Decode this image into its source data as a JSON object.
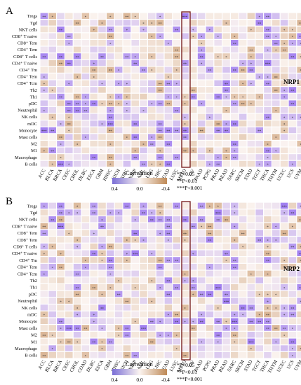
{
  "figure": {
    "panels": [
      "A",
      "B"
    ],
    "legend_title": "Correlation",
    "legend_ticks": [
      "0.4",
      "0.0",
      "-0.4"
    ],
    "legend_colors": {
      "positive": "#7b6fd6",
      "zero": "#fbf4f0",
      "negative": "#bf8a57"
    },
    "significance_notes": [
      "*P<0.05",
      "**P<0.01",
      "***P<0.001"
    ],
    "highlight_column": "PAAD",
    "highlight_color": "#7a2323"
  },
  "chart_data": [
    {
      "type": "heatmap",
      "panel": "A",
      "gene_label": "NRP1",
      "rows": [
        "Tregs",
        "Tgd",
        "NKT cells",
        "CD8⁺ T naive",
        "CD8⁺ Tem",
        "CD4⁺ Tem",
        "CD8⁺ T cells",
        "CD4⁺ T naive",
        "CD4⁺ Tm",
        "CD4⁺ Tem",
        "CD4⁺ Tcm",
        "Th2",
        "Th1",
        "pDC",
        "Neutrophil",
        "NK cells",
        "mDC",
        "Monocyte",
        "Mast cells",
        "M2",
        "M1",
        "Macrophage",
        "B cells"
      ],
      "columns": [
        "ACC",
        "BLCA",
        "BRCA",
        "CESC",
        "CHOL",
        "DLBC",
        "ESCA",
        "GBM",
        "HNSC",
        "KICH",
        "KIRC",
        "KIRP",
        "LAML",
        "LGG",
        "LIHC",
        "LUAD",
        "LUSC",
        "MESO",
        "OV",
        "PAAD",
        "PCPG",
        "PRAD",
        "READ",
        "SARC",
        "SKCM",
        "STAD",
        "TGCT",
        "THCA",
        "THYM",
        "UCEC",
        "UCS",
        "UVM"
      ],
      "values_note": "correlation coefficients, range -0.4 to 0.4"
    },
    {
      "type": "heatmap",
      "panel": "B",
      "gene_label": "NRP2",
      "rows": [
        "Tregs",
        "Tgd",
        "NKT cells",
        "CD8⁺ T naive",
        "CD8⁺ Tem",
        "CD8⁺ Tem",
        "CD8⁺ T cells",
        "CD4⁺ T naive",
        "CD4⁺ Tm",
        "CD4⁺ Tem",
        "CD4⁺ Tcm",
        "Th2",
        "Th1",
        "pDC",
        "Neutrophil",
        "NK cells",
        "mDC",
        "Monocyte",
        "Mast cells",
        "M2",
        "M1",
        "Macrophage",
        "B cells"
      ],
      "columns": [
        "ACC",
        "BLCA",
        "BRCA",
        "CESC",
        "CHOL",
        "COAD",
        "DLBC",
        "ESCA",
        "GBM",
        "HNSC",
        "KICH",
        "KIRP",
        "LAML",
        "LGG",
        "LIHC",
        "LUAD",
        "LUSC",
        "MESO",
        "OV",
        "PAAD",
        "PCPG",
        "PRAD",
        "READ",
        "SARC",
        "SKCM",
        "STAD",
        "TGCT",
        "THCA",
        "THYM",
        "UCEC",
        "UCS",
        "UVM"
      ],
      "values_note": "correlation coefficients, range -0.4 to 0.4"
    }
  ]
}
